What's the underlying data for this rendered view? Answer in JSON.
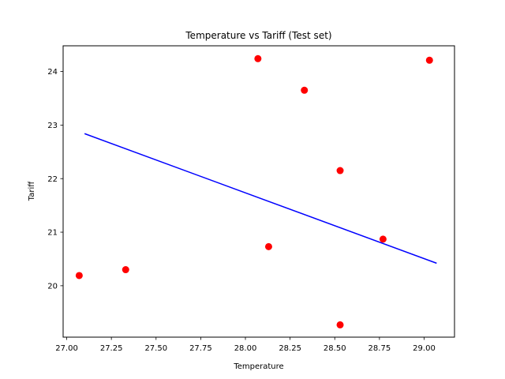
{
  "chart_data": {
    "type": "scatter",
    "title": "Temperature vs Tariff (Test set)",
    "xlabel": "Temperature",
    "ylabel": "Tariff",
    "xlim": [
      26.98,
      29.17
    ],
    "ylim": [
      19.04,
      24.48
    ],
    "xticks": [
      27.0,
      27.25,
      27.5,
      27.75,
      28.0,
      28.25,
      28.5,
      28.75,
      29.0
    ],
    "xtick_labels": [
      "27.00",
      "27.25",
      "27.50",
      "27.75",
      "28.00",
      "28.25",
      "28.50",
      "28.75",
      "29.00"
    ],
    "yticks": [
      20,
      21,
      22,
      23,
      24
    ],
    "ytick_labels": [
      "20",
      "21",
      "22",
      "23",
      "24"
    ],
    "grid": false,
    "series": [
      {
        "kind": "scatter",
        "color": "#ff0000",
        "points": [
          {
            "x": 27.07,
            "y": 20.19
          },
          {
            "x": 27.33,
            "y": 20.3
          },
          {
            "x": 28.07,
            "y": 24.24
          },
          {
            "x": 28.13,
            "y": 20.73
          },
          {
            "x": 28.33,
            "y": 23.65
          },
          {
            "x": 28.53,
            "y": 22.15
          },
          {
            "x": 28.53,
            "y": 19.27
          },
          {
            "x": 28.77,
            "y": 20.87
          },
          {
            "x": 29.03,
            "y": 24.21
          }
        ]
      },
      {
        "kind": "line",
        "color": "#0000ff",
        "points": [
          {
            "x": 27.1,
            "y": 22.84
          },
          {
            "x": 29.07,
            "y": 20.42
          }
        ]
      }
    ]
  }
}
